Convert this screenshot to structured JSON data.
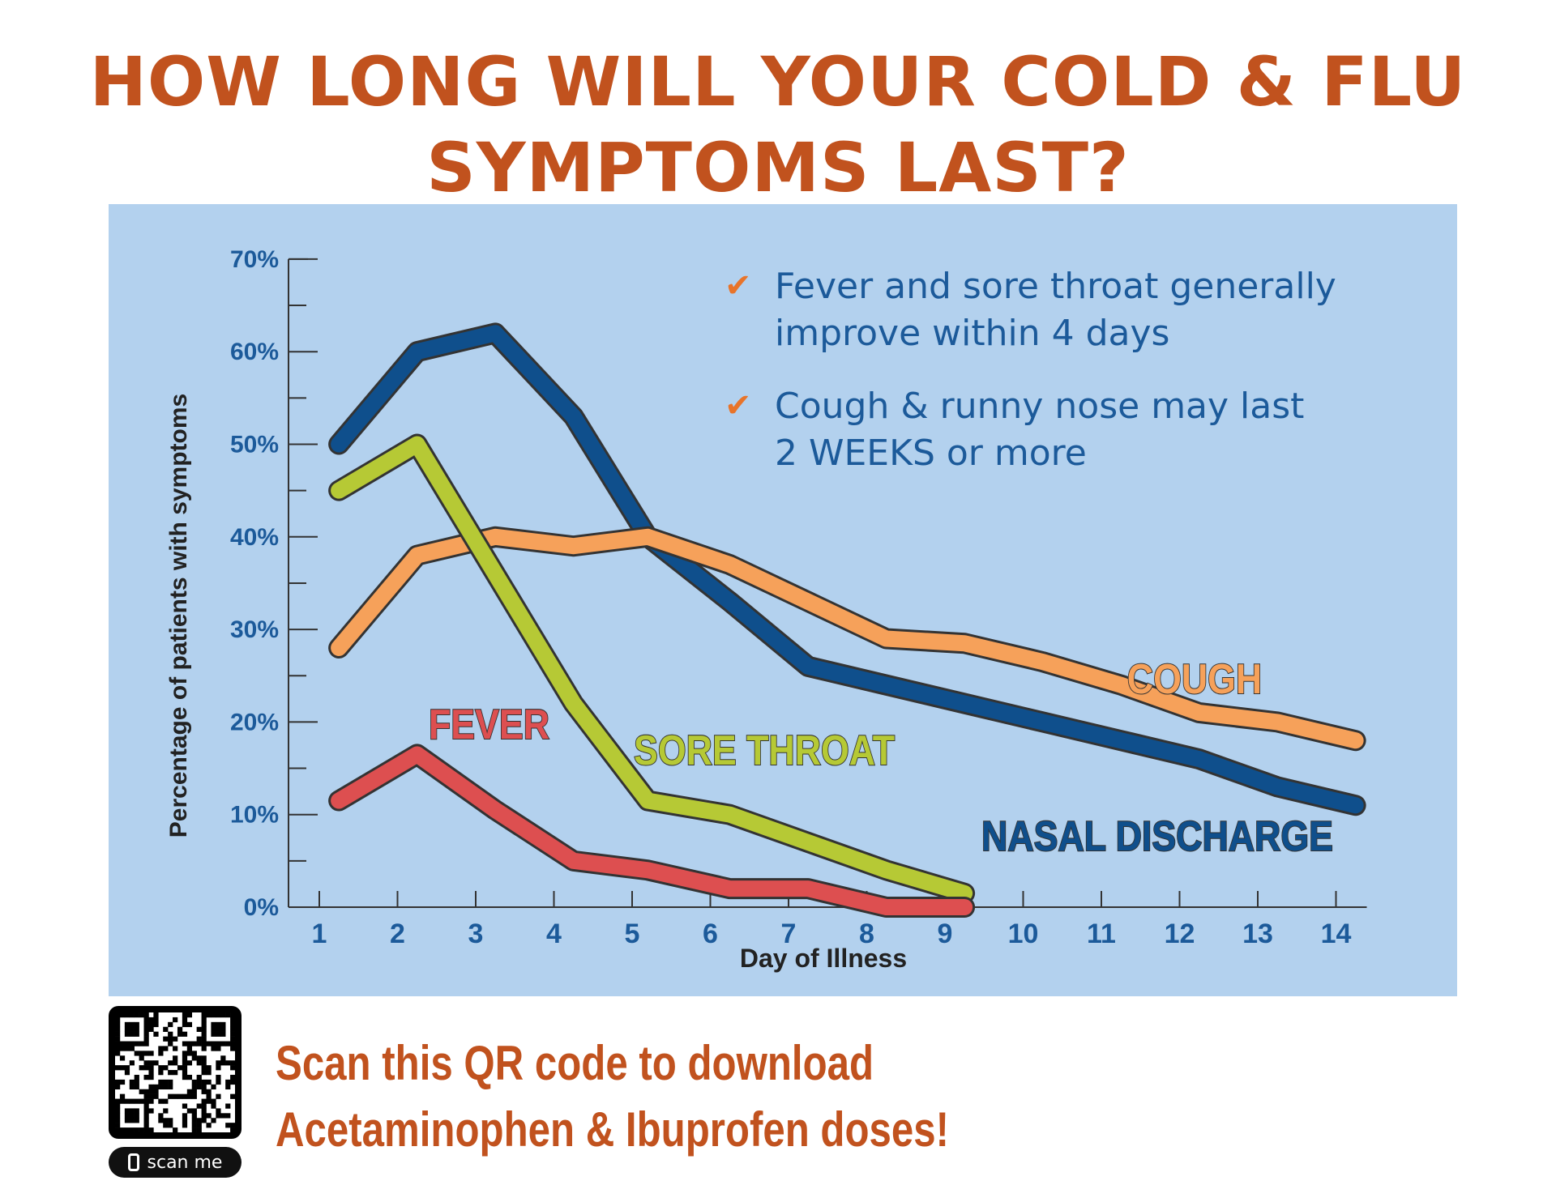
{
  "title": {
    "line1": "HOW LONG WILL YOUR COLD & FLU",
    "line2": "SYMPTOMS LAST?"
  },
  "notes": [
    {
      "icon": "check-icon",
      "line1": "Fever and sore throat generally",
      "line2": "improve within 4 days"
    },
    {
      "icon": "check-icon",
      "line1": "Cough & runny nose may last",
      "line2": "2 WEEKS or more"
    }
  ],
  "colors": {
    "title": "#c1521e",
    "panel_bg": "#b3d1ee",
    "axis_text": "#1c5a9a",
    "check": "#e8742a",
    "nasal": "#0f4f8c",
    "cough": "#f6a15a",
    "sore_throat": "#b6c935",
    "fever": "#dd4f50"
  },
  "chart_data": {
    "type": "line",
    "title": "",
    "xlabel": "Day of Illness",
    "ylabel": "Percentage of patients with symptoms",
    "x": [
      1,
      2,
      3,
      4,
      5,
      6,
      7,
      8,
      9,
      10,
      11,
      12,
      13,
      14
    ],
    "ylim": [
      0,
      70
    ],
    "xlim": [
      1,
      14
    ],
    "yticks": [
      "0%",
      "10%",
      "20%",
      "30%",
      "40%",
      "50%",
      "60%",
      "70%"
    ],
    "grid": false,
    "series": [
      {
        "name": "NASAL DISCHARGE",
        "x": [
          1.25,
          2.25,
          3.25,
          4.25,
          5.2,
          6.25,
          7.25,
          8.25,
          9.25,
          10.25,
          11.25,
          12.25,
          13.25,
          14.25
        ],
        "values": [
          50,
          60,
          62,
          53,
          40,
          33,
          26,
          24,
          22,
          20,
          18,
          16,
          13,
          11
        ]
      },
      {
        "name": "COUGH",
        "x": [
          1.25,
          2.25,
          3.25,
          4.25,
          5.2,
          6.25,
          7.25,
          8.25,
          9.25,
          10.25,
          11.25,
          12.25,
          13.25,
          14.25
        ],
        "values": [
          28,
          38,
          40,
          39,
          40,
          37,
          33,
          29,
          28.5,
          26.5,
          24,
          21,
          20,
          18
        ]
      },
      {
        "name": "SORE THROAT",
        "x": [
          1.25,
          2.25,
          3.25,
          4.25,
          5.2,
          6.25,
          7.25,
          8.25,
          9.25
        ],
        "values": [
          45,
          50,
          36,
          22,
          11.5,
          10,
          7,
          4,
          1.5
        ]
      },
      {
        "name": "FEVER",
        "x": [
          1.25,
          2.25,
          3.25,
          4.25,
          5.2,
          6.25,
          7.25,
          8.25,
          9.25
        ],
        "values": [
          11.5,
          16.5,
          10.5,
          5,
          4,
          2,
          2,
          0,
          0
        ]
      }
    ]
  },
  "qr": {
    "scan_label": "scan me"
  },
  "cta": {
    "line1": "Scan this QR code to download",
    "line2": "Acetaminophen & Ibuprofen doses!"
  }
}
